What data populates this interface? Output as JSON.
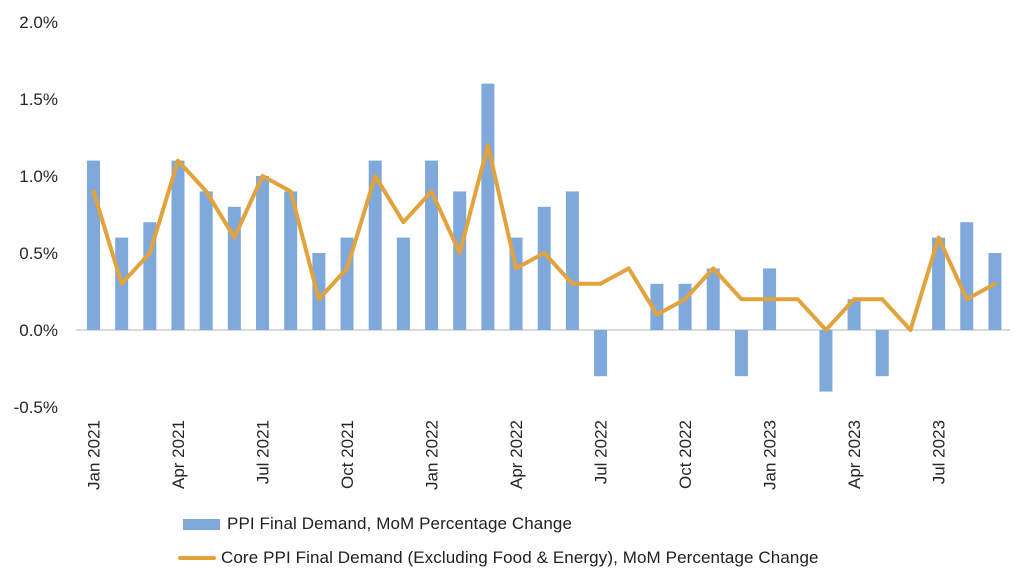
{
  "chart_data": {
    "type": "bar",
    "subtype": "bar-line-combo",
    "title": "",
    "categories": [
      "Jan 2021",
      "Feb 2021",
      "Mar 2021",
      "Apr 2021",
      "May 2021",
      "Jun 2021",
      "Jul 2021",
      "Aug 2021",
      "Sep 2021",
      "Oct 2021",
      "Nov 2021",
      "Dec 2021",
      "Jan 2022",
      "Feb 2022",
      "Mar 2022",
      "Apr 2022",
      "May 2022",
      "Jun 2022",
      "Jul 2022",
      "Aug 2022",
      "Sep 2022",
      "Oct 2022",
      "Nov 2022",
      "Dec 2022",
      "Jan 2023",
      "Feb 2023",
      "Mar 2023",
      "Apr 2023",
      "May 2023",
      "Jun 2023",
      "Jul 2023",
      "Aug 2023",
      "Sep 2023"
    ],
    "series": [
      {
        "name": "PPI Final Demand, MoM Percentage Change",
        "type": "bar",
        "color": "#7FA9DB",
        "values": [
          1.1,
          0.6,
          0.7,
          1.1,
          0.9,
          0.8,
          1.0,
          0.9,
          0.5,
          0.6,
          1.1,
          0.6,
          1.1,
          0.9,
          1.6,
          0.6,
          0.8,
          0.9,
          -0.3,
          0.0,
          0.3,
          0.3,
          0.4,
          -0.3,
          0.4,
          0.0,
          -0.4,
          0.2,
          -0.3,
          0.0,
          0.6,
          0.7,
          0.5
        ]
      },
      {
        "name": "Core PPI Final Demand (Excluding Food & Energy), MoM Percentage Change",
        "type": "line",
        "color": "#E2A23C",
        "values": [
          0.9,
          0.3,
          0.5,
          1.1,
          0.9,
          0.6,
          1.0,
          0.9,
          0.2,
          0.4,
          1.0,
          0.7,
          0.9,
          0.5,
          1.2,
          0.4,
          0.5,
          0.3,
          0.3,
          0.4,
          0.1,
          0.2,
          0.4,
          0.2,
          0.2,
          0.2,
          0.0,
          0.2,
          0.2,
          0.0,
          0.6,
          0.2,
          0.3
        ]
      }
    ],
    "xlabel": "",
    "ylabel": "",
    "ylim": [
      -0.5,
      2.0
    ],
    "y_ticks": [
      2.0,
      1.5,
      1.0,
      0.5,
      0.0,
      -0.5
    ],
    "y_tick_labels": [
      "2.0%",
      "1.5%",
      "1.0%",
      "0.5%",
      "0.0%",
      "-0.5%"
    ],
    "x_tick_labels": [
      "Jan 2021",
      "Apr 2021",
      "Jul 2021",
      "Oct 2021",
      "Jan 2022",
      "Apr 2022",
      "Jul 2022",
      "Oct 2022",
      "Jan 2023",
      "Apr 2023",
      "Jul 2023"
    ],
    "x_tick_every": 3,
    "x_label_rotation_deg": 90,
    "grid": "off",
    "zero_baseline": true,
    "legend_position": "bottom-left"
  },
  "legend": {
    "items": [
      {
        "label": "PPI Final Demand, MoM Percentage Change",
        "swatch": "blue-bar"
      },
      {
        "label": "Core PPI Final Demand (Excluding Food & Energy), MoM Percentage Change",
        "swatch": "orange-line"
      }
    ]
  },
  "colors": {
    "bar": "#7FA9DB",
    "line": "#E2A23C",
    "axis_line": "#DADADA",
    "tick_text": "#262626",
    "background": "#FFFFFF"
  }
}
